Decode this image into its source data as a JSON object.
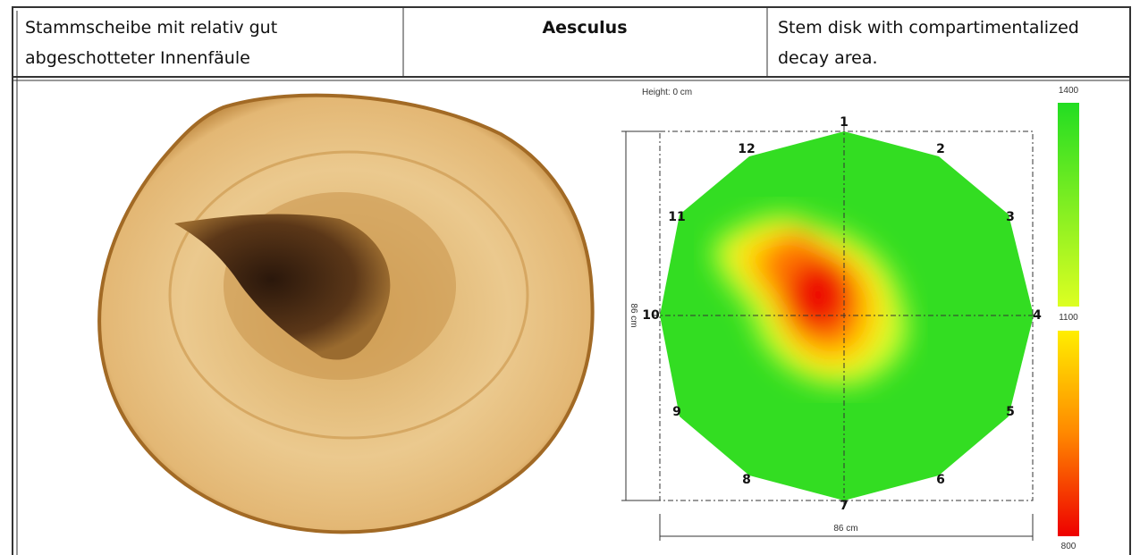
{
  "table": {
    "header": {
      "left": [
        "Stammscheibe mit relativ gut",
        "abgeschotteter Innenfäule"
      ],
      "middle": "Aesculus",
      "right": [
        "Stem disk with compartimentalized",
        "decay area."
      ]
    }
  },
  "tomogram": {
    "height_label": "Height: 0 cm",
    "sensors": [
      "1",
      "2",
      "3",
      "4",
      "5",
      "6",
      "7",
      "8",
      "9",
      "10",
      "11",
      "12"
    ],
    "width_label": "86 cm",
    "depth_label": "86 cm",
    "scale": [
      1400,
      1100,
      800
    ]
  }
}
